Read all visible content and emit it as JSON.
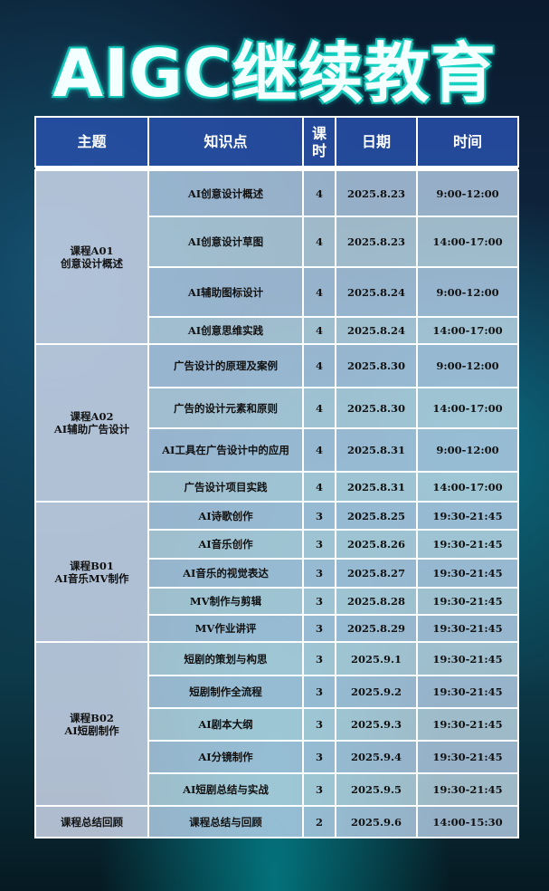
{
  "title": "AIGC继续教育",
  "headers": {
    "topic": "主题",
    "point": "知识点",
    "hours": "课时",
    "date": "日期",
    "time": "时间"
  },
  "groups": [
    {
      "topic": [
        "课程A01",
        "创意设计概述"
      ],
      "rows": [
        {
          "point": "AI创意设计概述",
          "hours": "4",
          "date": "2025.8.23",
          "time": "9:00-12:00"
        },
        {
          "point": "AI创意设计草图",
          "hours": "4",
          "date": "2025.8.23",
          "time": "14:00-17:00"
        },
        {
          "point": "AI辅助图标设计",
          "hours": "4",
          "date": "2025.8.24",
          "time": "9:00-12:00"
        },
        {
          "point": "AI创意思维实践",
          "hours": "4",
          "date": "2025.8.24",
          "time": "14:00-17:00"
        }
      ]
    },
    {
      "topic": [
        "课程A02",
        "AI辅助广告设计"
      ],
      "rows": [
        {
          "point": "广告设计的原理及案例",
          "hours": "4",
          "date": "2025.8.30",
          "time": "9:00-12:00"
        },
        {
          "point": "广告的设计元素和原则",
          "hours": "4",
          "date": "2025.8.30",
          "time": "14:00-17:00"
        },
        {
          "point": "AI工具在广告设计中的应用",
          "hours": "4",
          "date": "2025.8.31",
          "time": "9:00-12:00"
        },
        {
          "point": "广告设计项目实践",
          "hours": "4",
          "date": "2025.8.31",
          "time": "14:00-17:00"
        }
      ]
    },
    {
      "topic": [
        "课程B01",
        "AI音乐MV制作"
      ],
      "rows": [
        {
          "point": "AI诗歌创作",
          "hours": "3",
          "date": "2025.8.25",
          "time": "19:30-21:45"
        },
        {
          "point": "AI音乐创作",
          "hours": "3",
          "date": "2025.8.26",
          "time": "19:30-21:45"
        },
        {
          "point": "AI音乐的视觉表达",
          "hours": "3",
          "date": "2025.8.27",
          "time": "19:30-21:45"
        },
        {
          "point": "MV制作与剪辑",
          "hours": "3",
          "date": "2025.8.28",
          "time": "19:30-21:45"
        },
        {
          "point": "MV作业讲评",
          "hours": "3",
          "date": "2025.8.29",
          "time": "19:30-21:45"
        }
      ]
    },
    {
      "topic": [
        "课程B02",
        "AI短剧制作"
      ],
      "rows": [
        {
          "point": "短剧的策划与构思",
          "hours": "3",
          "date": "2025.9.1",
          "time": "19:30-21:45"
        },
        {
          "point": "短剧制作全流程",
          "hours": "3",
          "date": "2025.9.2",
          "time": "19:30-21:45"
        },
        {
          "point": "AI剧本大纲",
          "hours": "3",
          "date": "2025.9.3",
          "time": "19:30-21:45"
        },
        {
          "point": "AI分镜制作",
          "hours": "3",
          "date": "2025.9.4",
          "time": "19:30-21:45"
        },
        {
          "point": "AI短剧总结与实战",
          "hours": "3",
          "date": "2025.9.5",
          "time": "19:30-21:45"
        }
      ]
    },
    {
      "topic": [
        "课程总结回顾"
      ],
      "rows": [
        {
          "point": "课程总结与回顾",
          "hours": "2",
          "date": "2025.9.6",
          "time": "14:00-15:30"
        }
      ]
    }
  ]
}
